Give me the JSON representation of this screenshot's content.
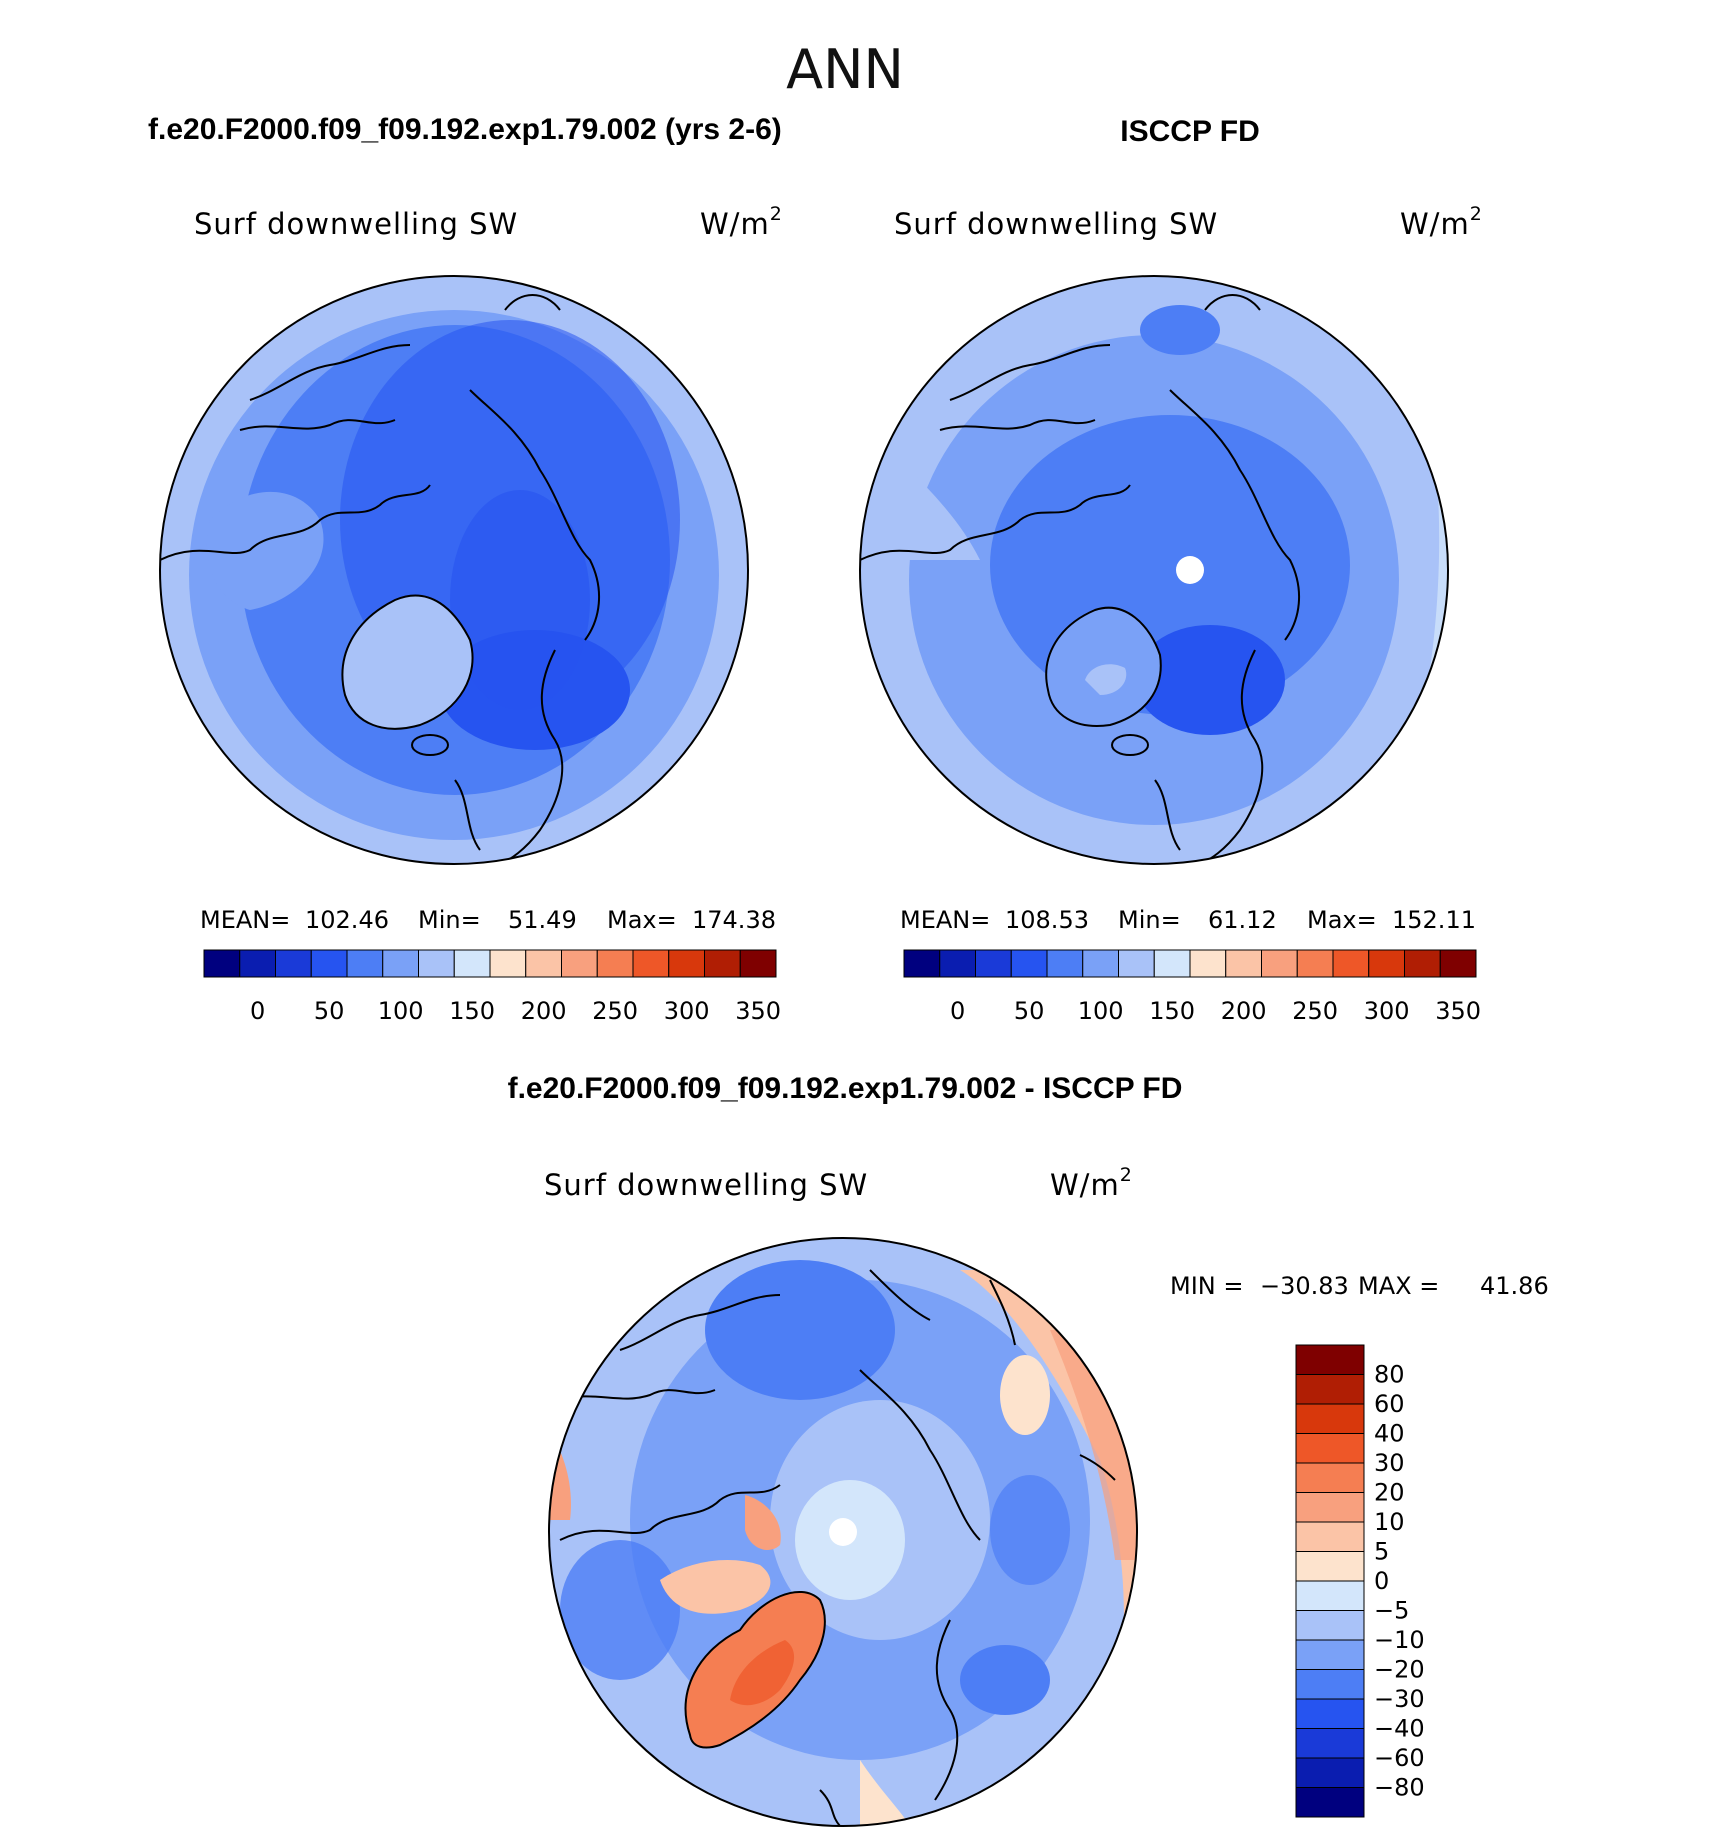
{
  "page": {
    "season": "ANN"
  },
  "chart_data": [
    {
      "type": "heatmap",
      "title": "f.e20.F2000.f09_f09.192.exp1.79.002 (yrs 2-6)",
      "variable": "Surf downwelling SW",
      "units": "W/m",
      "units_exp": "2",
      "projection": "north-polar-stereographic",
      "stats": {
        "mean_label": "MEAN=",
        "mean": "102.46",
        "min_label": "Min=",
        "min": "51.49",
        "max_label": "Max=",
        "max": "174.38"
      },
      "colorbar": {
        "orientation": "horizontal",
        "levels": [
          "0",
          "50",
          "100",
          "150",
          "200",
          "250",
          "300",
          "350"
        ],
        "colors": [
          "#00007f",
          "#0a1db0",
          "#1a3ad8",
          "#2654f0",
          "#4d7ef5",
          "#7aa1f7",
          "#a9c2f8",
          "#d3e6fb",
          "#fde3cd",
          "#fbc4a7",
          "#f8a07e",
          "#f57e52",
          "#ee5728",
          "#d8380c",
          "#b01e04",
          "#7f0000"
        ]
      }
    },
    {
      "type": "heatmap",
      "title": "ISCCP FD",
      "variable": "Surf downwelling SW",
      "units": "W/m",
      "units_exp": "2",
      "projection": "north-polar-stereographic",
      "stats": {
        "mean_label": "MEAN=",
        "mean": "108.53",
        "min_label": "Min=",
        "min": "61.12",
        "max_label": "Max=",
        "max": "152.11"
      },
      "colorbar": {
        "orientation": "horizontal",
        "levels": [
          "0",
          "50",
          "100",
          "150",
          "200",
          "250",
          "300",
          "350"
        ],
        "colors": [
          "#00007f",
          "#0a1db0",
          "#1a3ad8",
          "#2654f0",
          "#4d7ef5",
          "#7aa1f7",
          "#a9c2f8",
          "#d3e6fb",
          "#fde3cd",
          "#fbc4a7",
          "#f8a07e",
          "#f57e52",
          "#ee5728",
          "#d8380c",
          "#b01e04",
          "#7f0000"
        ]
      }
    },
    {
      "type": "heatmap",
      "title": "f.e20.F2000.f09_f09.192.exp1.79.002 - ISCCP FD",
      "variable": "Surf downwelling SW",
      "units": "W/m",
      "units_exp": "2",
      "projection": "north-polar-stereographic",
      "stats": {
        "min_label": "MIN =",
        "min": "−30.83",
        "max_label": "MAX =",
        "max": "41.86"
      },
      "colorbar": {
        "orientation": "vertical",
        "levels": [
          "80",
          "60",
          "40",
          "30",
          "20",
          "10",
          "5",
          "0",
          "−5",
          "−10",
          "−20",
          "−30",
          "−40",
          "−60",
          "−80"
        ],
        "colors": [
          "#7f0000",
          "#b01e04",
          "#d8380c",
          "#ee5728",
          "#f57e52",
          "#f8a07e",
          "#fbc4a7",
          "#fde3cd",
          "#d3e6fb",
          "#a9c2f8",
          "#7aa1f7",
          "#4d7ef5",
          "#2654f0",
          "#1a3ad8",
          "#0a1db0",
          "#00007f"
        ]
      }
    }
  ]
}
